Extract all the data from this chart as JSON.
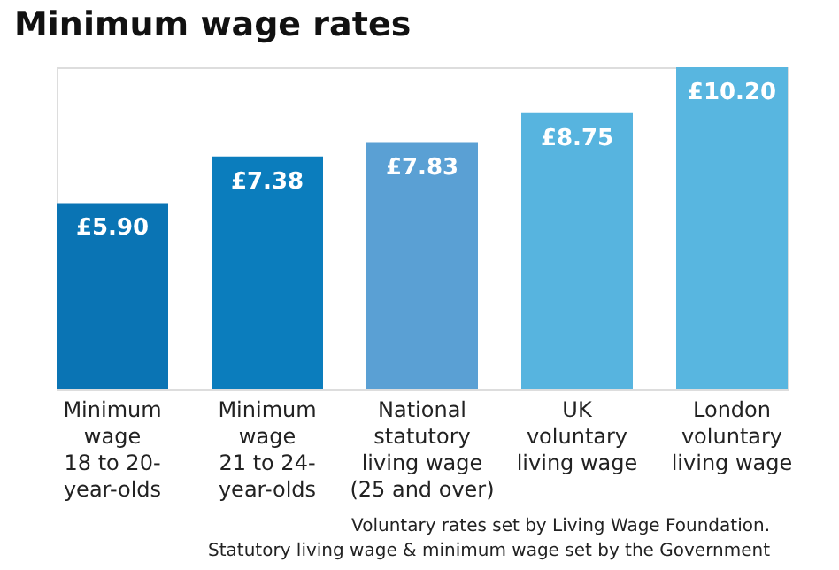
{
  "chart_data": {
    "type": "bar",
    "title": "Minimum wage rates",
    "categories": [
      "Minimum\nwage\n18 to 20-\nyear-olds",
      "Minimum\nwage\n21 to 24-\nyear-olds",
      "National\nstatutory\nliving wage\n(25 and over)",
      "UK\nvoluntary\nliving wage",
      "London\nvoluntary\nliving wage"
    ],
    "values": [
      5.9,
      7.38,
      7.83,
      8.75,
      10.2
    ],
    "value_labels": [
      "£5.90",
      "£7.38",
      "£7.83",
      "£8.75",
      "£10.20"
    ],
    "colors": [
      "#0a74b4",
      "#0b7dbd",
      "#5aa0d4",
      "#57b4df",
      "#58b6e0"
    ],
    "annotations": [
      "Voluntary rates set by Living Wage Foundation.",
      "Statutory living wage & minimum wage set by the Government"
    ],
    "grid": false
  }
}
